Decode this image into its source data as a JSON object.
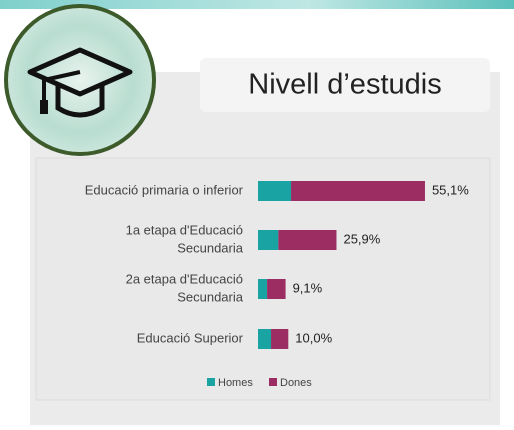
{
  "chart_data": {
    "type": "stacked-barh",
    "title": "Nivell d’estudis",
    "categories": [
      [
        "Educació primaria o inferior"
      ],
      [
        "1a etapa d'Educació",
        "Secundaria"
      ],
      [
        "2a etapa d'Educació",
        "Secundaria"
      ],
      [
        "Educació Superior"
      ]
    ],
    "series": [
      {
        "name": "Homes",
        "color": "#1aa3a3",
        "values": [
          10.9,
          6.7,
          3.0,
          4.3
        ]
      },
      {
        "name": "Dones",
        "color": "#9b2d63",
        "values": [
          44.2,
          19.2,
          6.1,
          5.7
        ]
      }
    ],
    "totals": [
      55.1,
      25.9,
      9.1,
      10.0
    ],
    "total_labels": [
      "55,1%",
      "25,9%",
      "9,1%",
      "10,0%"
    ]
  }
}
